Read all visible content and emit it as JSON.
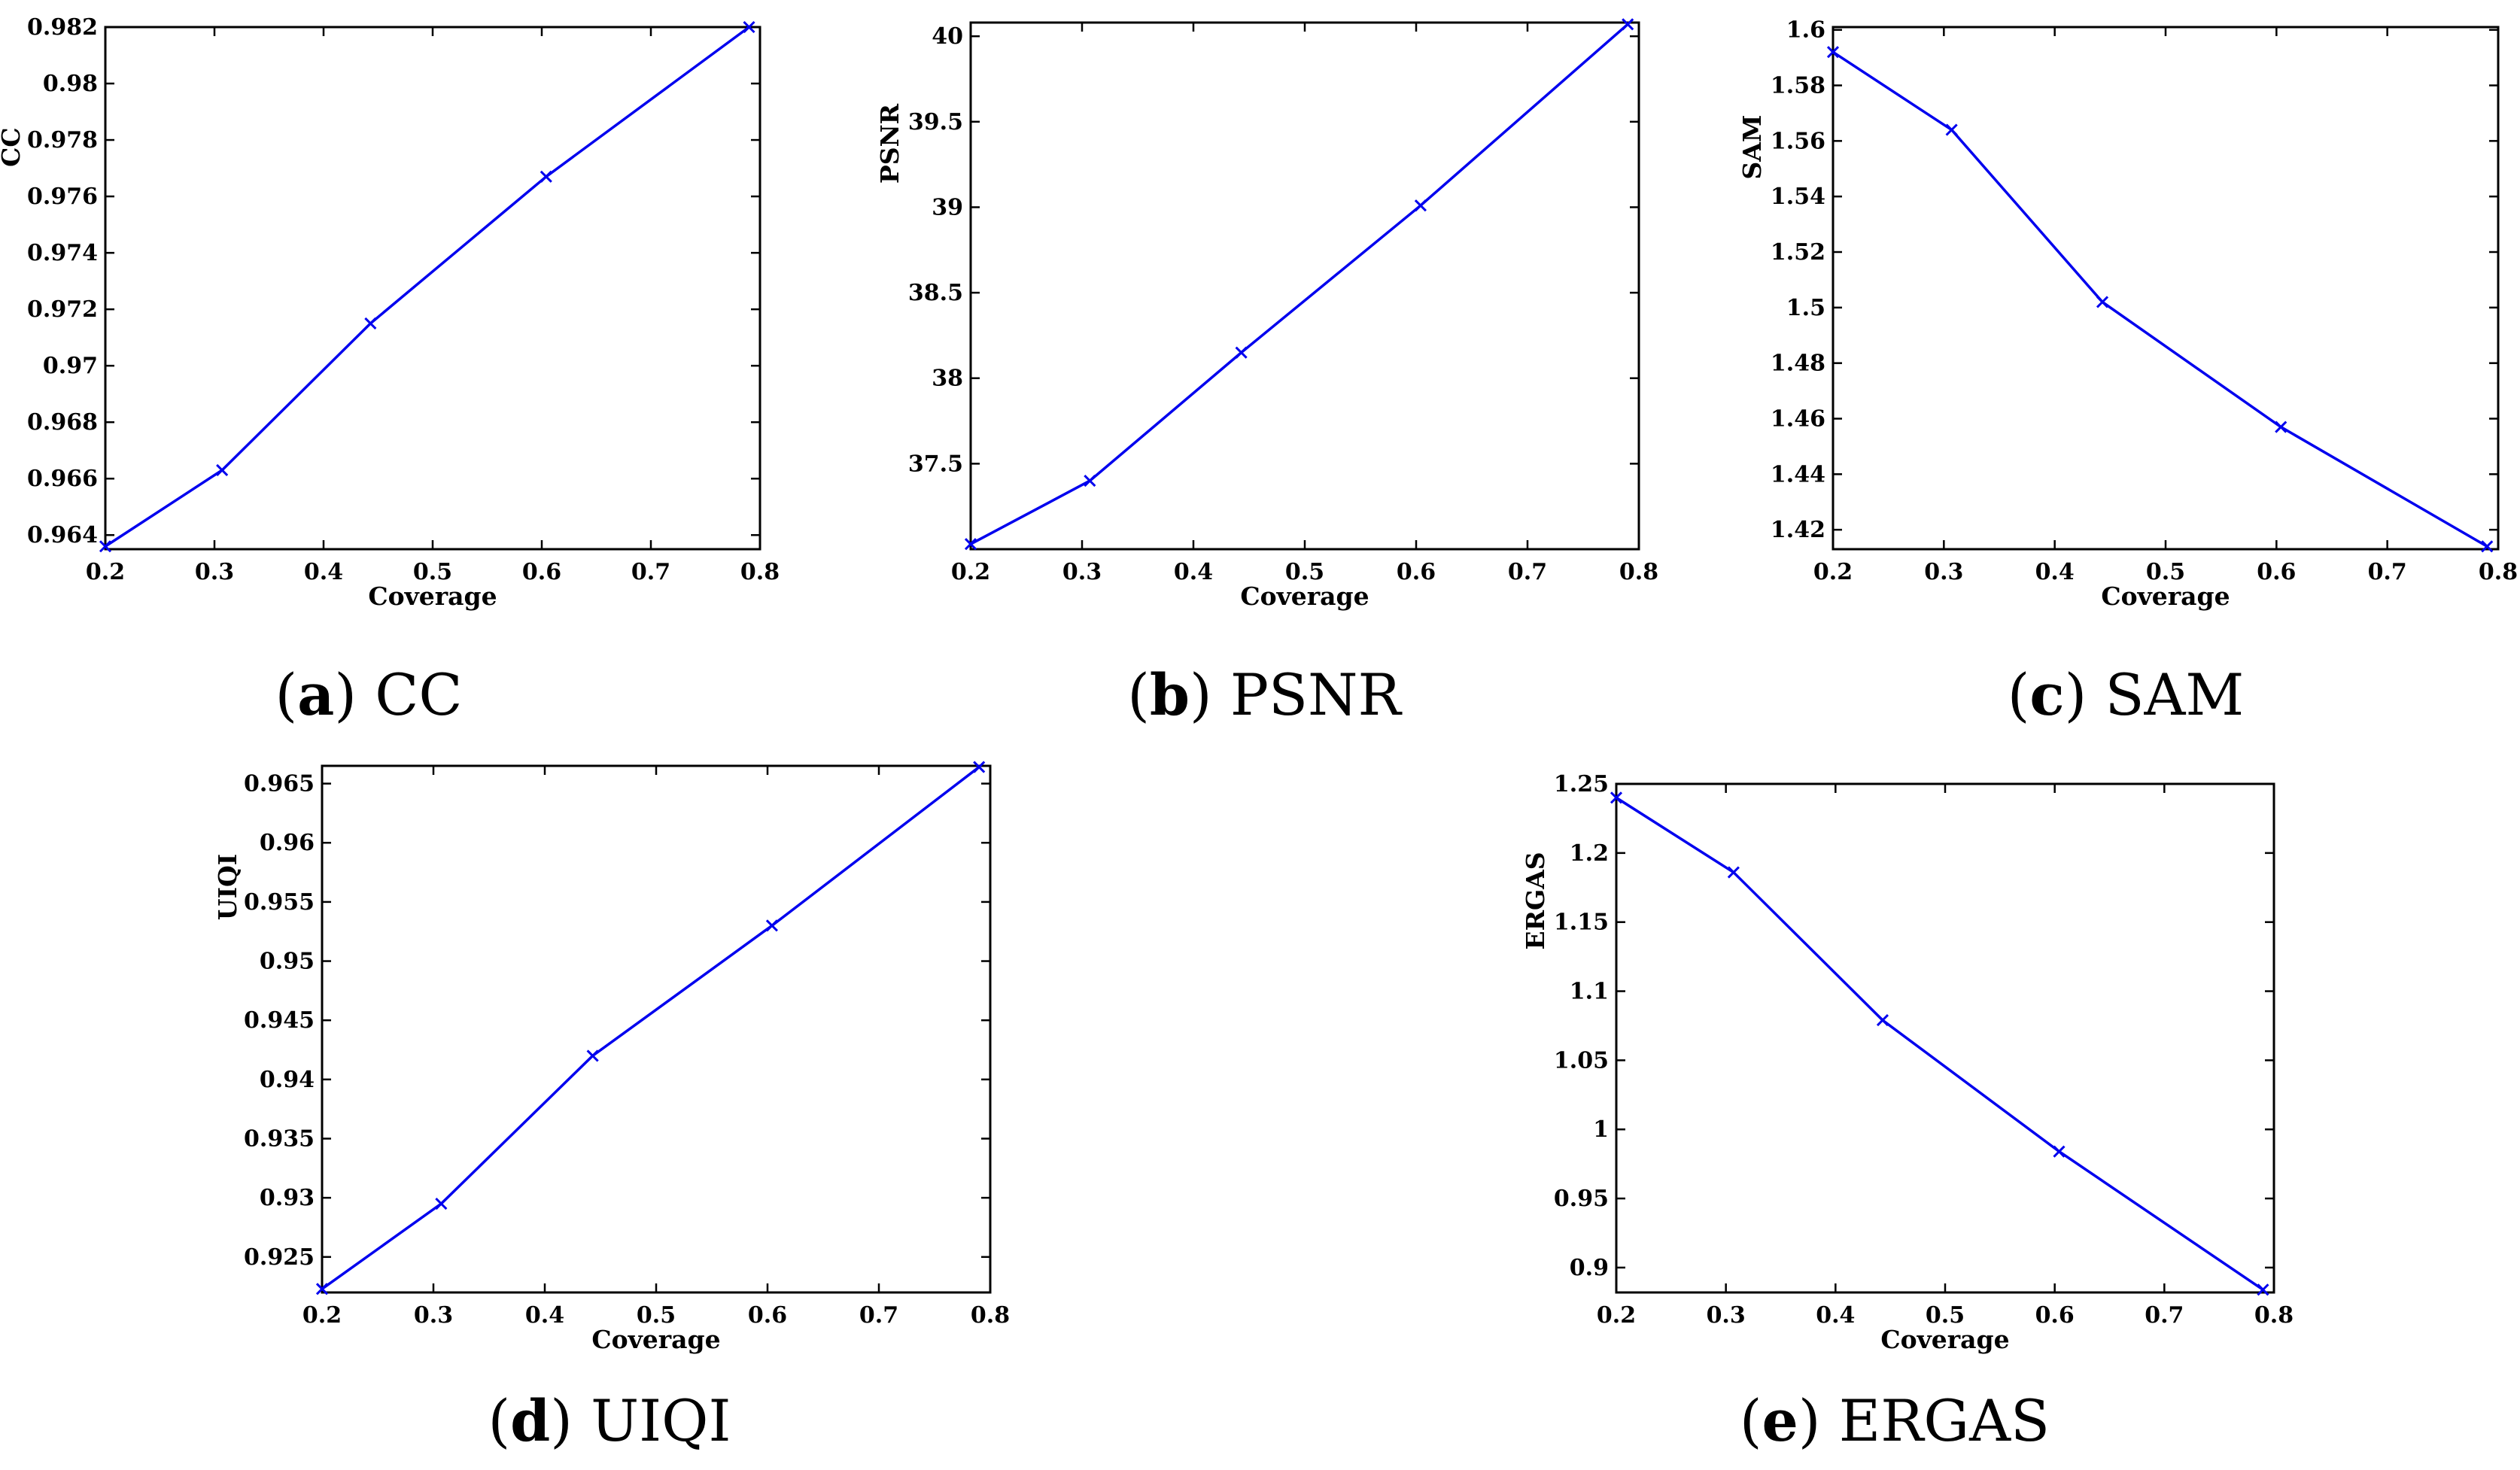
{
  "chart_data": [
    {
      "type": "line",
      "panel": "a",
      "caption_letter": "a",
      "caption_text": "CC",
      "xlabel": "Coverage",
      "ylabel": "CC",
      "xlim": [
        0.2,
        0.8
      ],
      "ylim": [
        0.9635,
        0.982
      ],
      "xticks": [
        "0.2",
        "0.3",
        "0.4",
        "0.5",
        "0.6",
        "0.7",
        "0.8"
      ],
      "yticks": [
        "0.964",
        "0.966",
        "0.968",
        "0.97",
        "0.972",
        "0.974",
        "0.976",
        "0.978",
        "0.98",
        "0.982"
      ],
      "x": [
        0.2,
        0.307,
        0.443,
        0.604,
        0.79
      ],
      "values": [
        0.9636,
        0.9663,
        0.9715,
        0.9767,
        0.982
      ],
      "marker": "x",
      "color": "#0000ee"
    },
    {
      "type": "line",
      "panel": "b",
      "caption_letter": "b",
      "caption_text": "PSNR",
      "xlabel": "Coverage",
      "ylabel": "PSNR",
      "xlim": [
        0.2,
        0.8
      ],
      "ylim": [
        37.0,
        40.08
      ],
      "xticks": [
        "0.2",
        "0.3",
        "0.4",
        "0.5",
        "0.6",
        "0.7",
        "0.8"
      ],
      "yticks": [
        "37.5",
        "38",
        "38.5",
        "39",
        "39.5",
        "40"
      ],
      "x": [
        0.2,
        0.307,
        0.443,
        0.604,
        0.79
      ],
      "values": [
        37.03,
        37.4,
        38.15,
        39.01,
        40.07
      ],
      "marker": "x",
      "color": "#0000ee"
    },
    {
      "type": "line",
      "panel": "c",
      "caption_letter": "c",
      "caption_text": "SAM",
      "xlabel": "Coverage",
      "ylabel": "SAM",
      "xlim": [
        0.2,
        0.8
      ],
      "ylim": [
        1.413,
        1.601
      ],
      "xticks": [
        "0.2",
        "0.3",
        "0.4",
        "0.5",
        "0.6",
        "0.7",
        "0.8"
      ],
      "yticks": [
        "1.42",
        "1.44",
        "1.46",
        "1.48",
        "1.5",
        "1.52",
        "1.54",
        "1.56",
        "1.58",
        "1.6"
      ],
      "x": [
        0.2,
        0.307,
        0.443,
        0.604,
        0.79
      ],
      "values": [
        1.592,
        1.564,
        1.502,
        1.457,
        1.414
      ],
      "marker": "x",
      "color": "#0000ee"
    },
    {
      "type": "line",
      "panel": "d",
      "caption_letter": "d",
      "caption_text": "UIQI",
      "xlabel": "Coverage",
      "ylabel": "UIQI",
      "xlim": [
        0.2,
        0.8
      ],
      "ylim": [
        0.922,
        0.9665
      ],
      "xticks": [
        "0.2",
        "0.3",
        "0.4",
        "0.5",
        "0.6",
        "0.7",
        "0.8"
      ],
      "yticks": [
        "0.925",
        "0.93",
        "0.935",
        "0.94",
        "0.945",
        "0.95",
        "0.955",
        "0.96",
        "0.965"
      ],
      "x": [
        0.2,
        0.307,
        0.443,
        0.604,
        0.79
      ],
      "values": [
        0.9223,
        0.9295,
        0.942,
        0.953,
        0.9664
      ],
      "marker": "x",
      "color": "#0000ee"
    },
    {
      "type": "line",
      "panel": "e",
      "caption_letter": "e",
      "caption_text": "ERGAS",
      "xlabel": "Coverage",
      "ylabel": "ERGAS",
      "xlim": [
        0.2,
        0.8
      ],
      "ylim": [
        0.882,
        1.25
      ],
      "xticks": [
        "0.2",
        "0.3",
        "0.4",
        "0.5",
        "0.6",
        "0.7",
        "0.8"
      ],
      "yticks": [
        "0.9",
        "0.95",
        "1",
        "1.05",
        "1.1",
        "1.15",
        "1.2",
        "1.25"
      ],
      "x": [
        0.2,
        0.307,
        0.443,
        0.604,
        0.79
      ],
      "values": [
        1.24,
        1.186,
        1.079,
        0.984,
        0.884
      ],
      "marker": "x",
      "color": "#0000ee"
    }
  ]
}
